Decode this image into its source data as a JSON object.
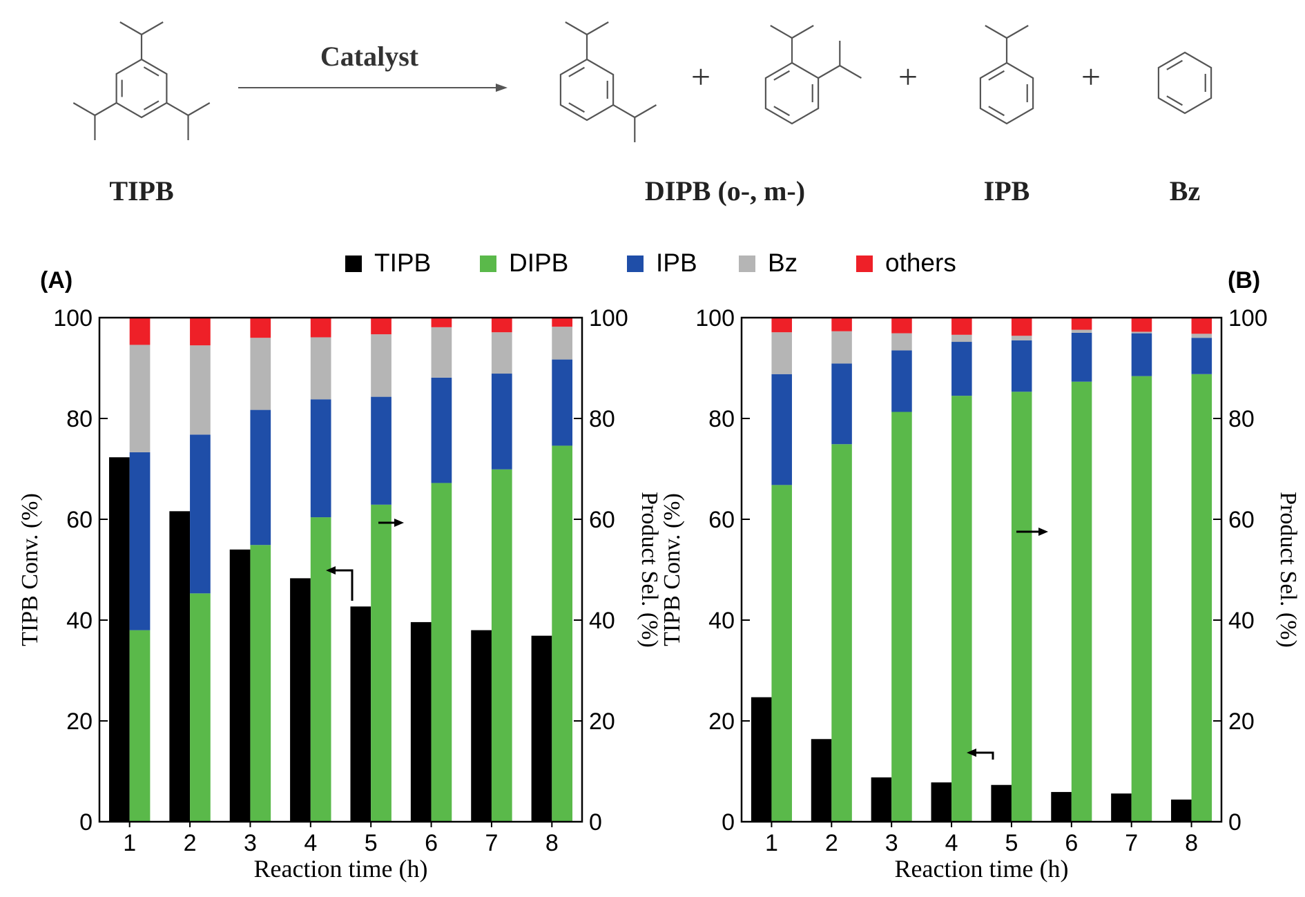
{
  "colors": {
    "TIPB": "#000000",
    "DIPB": "#5ab94a",
    "IPB": "#1f4ea8",
    "Bz": "#b5b5b5",
    "others": "#ee2028"
  },
  "scheme": {
    "arrow_label": "Catalyst",
    "reactant": "TIPB",
    "products": [
      "DIPB (o-, m-)",
      "IPB",
      "Bz"
    ],
    "plus": "+"
  },
  "legend": {
    "items": [
      {
        "key": "TIPB",
        "label": "TIPB"
      },
      {
        "key": "DIPB",
        "label": "DIPB"
      },
      {
        "key": "IPB",
        "label": "IPB"
      },
      {
        "key": "Bz",
        "label": "Bz"
      },
      {
        "key": "others",
        "label": "others"
      }
    ]
  },
  "chart_data": [
    {
      "type": "bar",
      "panel_label": "(A)",
      "xlabel": "Reaction time (h)",
      "ylabel_left": "TIPB Conv. (%)",
      "ylabel_right": "Product Sel. (%)",
      "ylim": [
        0,
        100
      ],
      "yticks": [
        0,
        20,
        40,
        60,
        80,
        100
      ],
      "categories": [
        "1",
        "2",
        "3",
        "4",
        "5",
        "6",
        "7",
        "8"
      ],
      "conversion": {
        "name": "TIPB",
        "values": [
          72.3,
          61.6,
          54.0,
          48.3,
          42.7,
          39.6,
          38.0,
          36.9
        ]
      },
      "selectivity_stacked": [
        {
          "name": "DIPB",
          "values": [
            38.0,
            45.3,
            54.9,
            60.4,
            62.9,
            67.2,
            69.9,
            74.6
          ]
        },
        {
          "name": "IPB",
          "values": [
            35.3,
            31.5,
            26.8,
            23.4,
            21.4,
            20.9,
            19.0,
            17.1
          ]
        },
        {
          "name": "Bz",
          "values": [
            21.3,
            17.7,
            14.3,
            12.3,
            12.4,
            10.0,
            8.2,
            6.5
          ]
        },
        {
          "name": "others",
          "values": [
            5.4,
            5.5,
            4.0,
            3.9,
            3.3,
            1.9,
            2.9,
            1.8
          ]
        }
      ]
    },
    {
      "type": "bar",
      "panel_label": "(B)",
      "xlabel": "Reaction time (h)",
      "ylabel_left": "TIPB Conv. (%)",
      "ylabel_right": "Product Sel. (%)",
      "ylim": [
        0,
        100
      ],
      "yticks": [
        0,
        20,
        40,
        60,
        80,
        100
      ],
      "categories": [
        "1",
        "2",
        "3",
        "4",
        "5",
        "6",
        "7",
        "8"
      ],
      "conversion": {
        "name": "TIPB",
        "values": [
          24.7,
          16.4,
          8.8,
          7.8,
          7.3,
          5.9,
          5.6,
          4.4
        ]
      },
      "selectivity_stacked": [
        {
          "name": "DIPB",
          "values": [
            66.8,
            74.9,
            81.3,
            84.5,
            85.3,
            87.3,
            88.4,
            88.8
          ]
        },
        {
          "name": "IPB",
          "values": [
            22.0,
            16.0,
            12.2,
            10.7,
            10.2,
            9.7,
            8.5,
            7.2
          ]
        },
        {
          "name": "Bz",
          "values": [
            8.3,
            6.4,
            3.4,
            1.4,
            0.9,
            0.6,
            0.3,
            0.8
          ]
        },
        {
          "name": "others",
          "values": [
            2.9,
            2.7,
            3.1,
            3.4,
            3.6,
            2.4,
            2.8,
            3.2
          ]
        }
      ]
    }
  ]
}
